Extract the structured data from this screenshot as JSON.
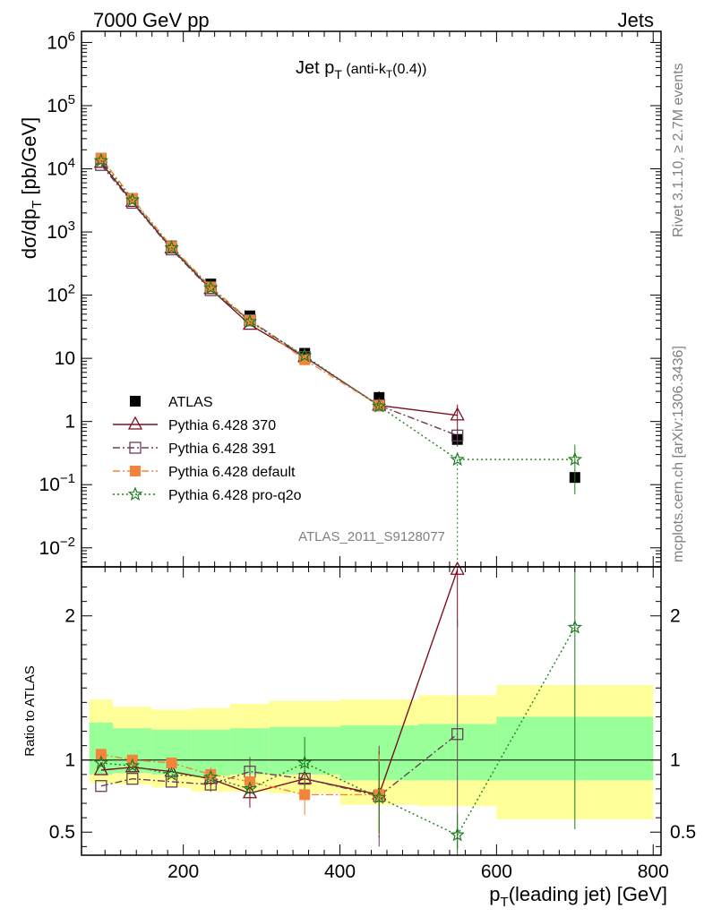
{
  "header": {
    "left": "7000 GeV pp",
    "right": "Jets"
  },
  "side_text": {
    "rivet": "Rivet 3.1.10, ≥ 2.7M events",
    "mcplots": "mcplots.cern.ch [arXiv:1306.3436]"
  },
  "chart_data": [
    {
      "type": "scatter",
      "title": "Jet p_T (anti-k_T(0.4))",
      "ylabel": "dσ/dp_T [pb/GeV]",
      "yscale": "log",
      "ylim": [
        0.005,
        1500000
      ],
      "xlim": [
        70,
        810
      ],
      "watermark": "ATLAS_2011_S9128077",
      "legend_position": "lower-left",
      "y_ticks": [
        {
          "value": 0.01,
          "base": "10",
          "exp": "−2"
        },
        {
          "value": 0.1,
          "base": "10",
          "exp": "−1"
        },
        {
          "value": 1,
          "base": "1",
          "exp": ""
        },
        {
          "value": 10,
          "base": "10",
          "exp": ""
        },
        {
          "value": 100,
          "base": "10",
          "exp": "2"
        },
        {
          "value": 1000,
          "base": "10",
          "exp": "3"
        },
        {
          "value": 10000,
          "base": "10",
          "exp": "4"
        },
        {
          "value": 100000,
          "base": "10",
          "exp": "5"
        },
        {
          "value": 1000000,
          "base": "10",
          "exp": "6"
        }
      ],
      "series": [
        {
          "name": "ATLAS",
          "color": "#000000",
          "marker": "filled-square",
          "x": [
            95,
            135,
            185,
            235,
            285,
            355,
            450,
            550,
            700
          ],
          "y": [
            14500,
            3400,
            600,
            150,
            47,
            12,
            2.4,
            0.52,
            0.13
          ],
          "yerr": [
            0,
            0,
            0,
            0,
            0,
            0.5,
            0.6,
            0.08,
            0.02
          ]
        },
        {
          "name": "Pythia 6.428 370",
          "color": "#7f0f1f",
          "marker": "open-triangle",
          "line": "solid",
          "x": [
            95,
            135,
            185,
            235,
            285,
            355,
            450,
            550
          ],
          "y": [
            12500,
            3000,
            550,
            125,
            34,
            10.5,
            1.8,
            1.25
          ],
          "yerr": [
            0,
            0,
            0,
            0,
            0,
            0,
            0.2,
            0.6
          ]
        },
        {
          "name": "Pythia 6.428 391",
          "color": "#6b3f5a",
          "marker": "open-square",
          "line": "dashdot",
          "x": [
            95,
            135,
            185,
            235,
            285,
            355,
            450,
            550
          ],
          "y": [
            11500,
            2900,
            530,
            120,
            40,
            10.5,
            1.8,
            0.6
          ],
          "yerr": [
            0,
            0,
            0,
            0,
            0,
            0,
            0.2,
            0.2
          ]
        },
        {
          "name": "Pythia 6.428 default",
          "color": "#f2843c",
          "marker": "filled-square",
          "line": "dashdot",
          "x": [
            95,
            135,
            185,
            235,
            285,
            355,
            450
          ],
          "y": [
            14800,
            3400,
            590,
            135,
            40,
            9.5,
            1.8
          ],
          "yerr": [
            0,
            0,
            0,
            0,
            0,
            1.8,
            0.3
          ]
        },
        {
          "name": "Pythia 6.428 pro-q2o",
          "color": "#1e7d1e",
          "marker": "star",
          "line": "dotted",
          "x": [
            95,
            135,
            185,
            235,
            285,
            355,
            450,
            550,
            700
          ],
          "y": [
            13500,
            3200,
            560,
            130,
            38,
            11,
            1.75,
            0.25,
            0.25
          ],
          "yerr": [
            0,
            0,
            0,
            0,
            0,
            0,
            0.2,
            0,
            0.18
          ],
          "xerr": [
            0,
            0,
            0,
            0,
            0,
            0,
            0,
            0,
            0
          ]
        }
      ]
    },
    {
      "type": "scatter",
      "ylabel": "Ratio to ATLAS",
      "xlabel": "p_T(leading jet) [GeV]",
      "ylim": [
        0.34,
        2.34
      ],
      "xlim": [
        70,
        810
      ],
      "x_ticks": [
        200,
        400,
        600,
        800
      ],
      "y_ticks": [
        0.5,
        1,
        2
      ],
      "reference_line": 1,
      "bands": [
        {
          "x": [
            80,
            110,
            160,
            210,
            260,
            310,
            400,
            500,
            600,
            800
          ],
          "yellow": [
            [
              0.84,
              1.42
            ],
            [
              0.83,
              1.37
            ],
            [
              0.81,
              1.35
            ],
            [
              0.78,
              1.36
            ],
            [
              0.78,
              1.39
            ],
            [
              0.77,
              1.41
            ],
            [
              0.69,
              1.42
            ],
            [
              0.68,
              1.45
            ],
            [
              0.59,
              1.52
            ]
          ],
          "green": [
            [
              0.9,
              1.26
            ],
            [
              0.91,
              1.22
            ],
            [
              0.9,
              1.21
            ],
            [
              0.89,
              1.21
            ],
            [
              0.9,
              1.22
            ],
            [
              0.9,
              1.23
            ],
            [
              0.86,
              1.24
            ],
            [
              0.86,
              1.25
            ],
            [
              0.86,
              1.3
            ]
          ]
        }
      ],
      "series": [
        {
          "name": "Pythia 6.428 370",
          "x": [
            95,
            135,
            185,
            235,
            285,
            355,
            450,
            550
          ],
          "y": [
            0.93,
            0.95,
            0.92,
            0.87,
            0.77,
            0.87,
            0.76,
            2.32
          ],
          "yerr": [
            0,
            0,
            0,
            0.05,
            0.1,
            0,
            0.3,
            0.4
          ]
        },
        {
          "name": "Pythia 6.428 391",
          "x": [
            95,
            135,
            185,
            235,
            285,
            355,
            450,
            550
          ],
          "y": [
            0.82,
            0.87,
            0.85,
            0.83,
            0.92,
            0.87,
            0.75,
            1.18
          ],
          "yerr": [
            0,
            0,
            0,
            0.05,
            0.1,
            0,
            0.35,
            0.8
          ]
        },
        {
          "name": "Pythia 6.428 default",
          "x": [
            95,
            135,
            185,
            235,
            285,
            355,
            450
          ],
          "y": [
            1.04,
            1.0,
            0.98,
            0.9,
            0.85,
            0.76,
            0.76
          ],
          "yerr": [
            0,
            0,
            0,
            0.05,
            0,
            0.14,
            0.28
          ]
        },
        {
          "name": "Pythia 6.428 pro-q2o",
          "x": [
            95,
            135,
            185,
            235,
            285,
            355,
            450,
            550,
            700
          ],
          "y": [
            0.98,
            0.96,
            0.9,
            0.88,
            0.8,
            0.98,
            0.74,
            0.48,
            1.92
          ],
          "yerr": [
            0,
            0,
            0,
            0,
            0,
            0.18,
            0.25,
            0.15,
            1.4
          ]
        }
      ]
    }
  ]
}
